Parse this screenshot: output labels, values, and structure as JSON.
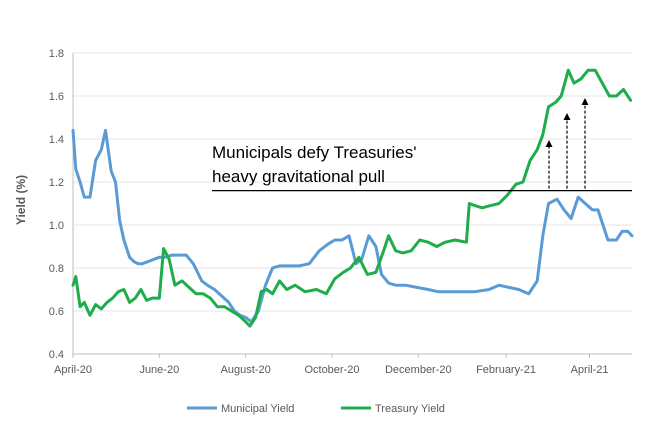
{
  "chart_data": {
    "type": "line",
    "title": "",
    "xlabel": "",
    "ylabel": "Yield (%)",
    "ylim": [
      0.4,
      1.8
    ],
    "yticks": [
      "0.4",
      "0.6",
      "0.8",
      "1.0",
      "1.2",
      "1.4",
      "1.6",
      "1.8"
    ],
    "xticks": [
      "April-20",
      "June-20",
      "August-20",
      "October-20",
      "December-20",
      "February-21",
      "April-21"
    ],
    "grid": true,
    "legend": "bottom",
    "annotation": [
      "Municipals defy Treasuries'",
      "heavy gravitational pull"
    ],
    "reference_line": 1.16,
    "colors": {
      "Municipal Yield": "#5b9bd5",
      "Treasury Yield": "#1fad4b"
    },
    "series": [
      {
        "name": "Municipal Yield",
        "x": [
          "2020-04-01",
          "2020-04-03",
          "2020-04-06",
          "2020-04-09",
          "2020-04-13",
          "2020-04-17",
          "2020-04-21",
          "2020-04-24",
          "2020-04-28",
          "2020-05-01",
          "2020-05-04",
          "2020-05-07",
          "2020-05-11",
          "2020-05-14",
          "2020-05-17",
          "2020-05-20",
          "2020-05-24",
          "2020-05-28",
          "2020-06-01",
          "2020-06-05",
          "2020-06-10",
          "2020-06-15",
          "2020-06-20",
          "2020-06-25",
          "2020-07-01",
          "2020-07-05",
          "2020-07-10",
          "2020-07-15",
          "2020-07-20",
          "2020-07-24",
          "2020-07-28",
          "2020-08-01",
          "2020-08-05",
          "2020-08-10",
          "2020-08-15",
          "2020-08-20",
          "2020-08-25",
          "2020-09-01",
          "2020-09-08",
          "2020-09-15",
          "2020-09-22",
          "2020-09-28",
          "2020-10-03",
          "2020-10-08",
          "2020-10-13",
          "2020-10-18",
          "2020-10-22",
          "2020-10-27",
          "2020-11-01",
          "2020-11-05",
          "2020-11-10",
          "2020-11-15",
          "2020-11-22",
          "2020-11-30",
          "2020-12-08",
          "2020-12-15",
          "2020-12-22",
          "2021-01-01",
          "2021-01-10",
          "2021-01-20",
          "2021-01-27",
          "2021-02-03",
          "2021-02-10",
          "2021-02-17",
          "2021-02-23",
          "2021-02-27",
          "2021-03-03",
          "2021-03-09",
          "2021-03-14",
          "2021-03-19",
          "2021-03-24",
          "2021-03-29",
          "2021-04-03",
          "2021-04-07",
          "2021-04-14",
          "2021-04-20",
          "2021-04-24",
          "2021-04-28",
          "2021-05-01"
        ],
        "y": [
          1.44,
          1.26,
          1.2,
          1.13,
          1.13,
          1.3,
          1.35,
          1.44,
          1.25,
          1.2,
          1.02,
          0.93,
          0.85,
          0.83,
          0.82,
          0.82,
          0.83,
          0.84,
          0.85,
          0.85,
          0.86,
          0.86,
          0.86,
          0.82,
          0.74,
          0.72,
          0.7,
          0.67,
          0.64,
          0.6,
          0.58,
          0.57,
          0.55,
          0.6,
          0.72,
          0.8,
          0.81,
          0.81,
          0.81,
          0.82,
          0.88,
          0.91,
          0.93,
          0.93,
          0.95,
          0.82,
          0.84,
          0.95,
          0.9,
          0.77,
          0.73,
          0.72,
          0.72,
          0.71,
          0.7,
          0.69,
          0.69,
          0.69,
          0.69,
          0.7,
          0.72,
          0.71,
          0.7,
          0.68,
          0.74,
          0.95,
          1.1,
          1.12,
          1.07,
          1.03,
          1.13,
          1.1,
          1.07,
          1.07,
          0.93,
          0.93,
          0.97,
          0.97,
          0.95
        ]
      },
      {
        "name": "Treasury Yield",
        "x": [
          "2020-04-01",
          "2020-04-03",
          "2020-04-06",
          "2020-04-09",
          "2020-04-13",
          "2020-04-17",
          "2020-04-21",
          "2020-04-25",
          "2020-04-29",
          "2020-05-03",
          "2020-05-07",
          "2020-05-11",
          "2020-05-15",
          "2020-05-19",
          "2020-05-23",
          "2020-05-27",
          "2020-06-01",
          "2020-06-04",
          "2020-06-08",
          "2020-06-12",
          "2020-06-17",
          "2020-06-22",
          "2020-06-27",
          "2020-07-02",
          "2020-07-07",
          "2020-07-12",
          "2020-07-17",
          "2020-07-22",
          "2020-07-27",
          "2020-08-01",
          "2020-08-04",
          "2020-08-08",
          "2020-08-12",
          "2020-08-16",
          "2020-08-20",
          "2020-08-25",
          "2020-08-30",
          "2020-09-05",
          "2020-09-12",
          "2020-09-20",
          "2020-09-27",
          "2020-10-03",
          "2020-10-09",
          "2020-10-14",
          "2020-10-20",
          "2020-10-26",
          "2020-11-01",
          "2020-11-06",
          "2020-11-10",
          "2020-11-15",
          "2020-11-20",
          "2020-11-26",
          "2020-12-02",
          "2020-12-08",
          "2020-12-14",
          "2020-12-20",
          "2020-12-27",
          "2021-01-04",
          "2021-01-06",
          "2021-01-10",
          "2021-01-15",
          "2021-01-21",
          "2021-01-27",
          "2021-02-02",
          "2021-02-08",
          "2021-02-13",
          "2021-02-18",
          "2021-02-23",
          "2021-02-27",
          "2021-03-03",
          "2021-03-08",
          "2021-03-12",
          "2021-03-17",
          "2021-03-21",
          "2021-03-26",
          "2021-03-31",
          "2021-04-05",
          "2021-04-10",
          "2021-04-15",
          "2021-04-20",
          "2021-04-25",
          "2021-04-30"
        ],
        "y": [
          0.72,
          0.76,
          0.62,
          0.64,
          0.58,
          0.63,
          0.61,
          0.64,
          0.66,
          0.69,
          0.7,
          0.64,
          0.66,
          0.7,
          0.65,
          0.66,
          0.66,
          0.89,
          0.84,
          0.72,
          0.74,
          0.71,
          0.68,
          0.68,
          0.66,
          0.62,
          0.62,
          0.6,
          0.58,
          0.55,
          0.53,
          0.57,
          0.69,
          0.7,
          0.68,
          0.74,
          0.7,
          0.72,
          0.69,
          0.7,
          0.68,
          0.75,
          0.78,
          0.8,
          0.85,
          0.77,
          0.78,
          0.87,
          0.95,
          0.88,
          0.87,
          0.88,
          0.93,
          0.92,
          0.9,
          0.92,
          0.93,
          0.92,
          1.1,
          1.09,
          1.08,
          1.09,
          1.1,
          1.14,
          1.19,
          1.2,
          1.3,
          1.35,
          1.42,
          1.55,
          1.57,
          1.6,
          1.72,
          1.66,
          1.68,
          1.72,
          1.72,
          1.66,
          1.6,
          1.6,
          1.63,
          1.58
        ]
      }
    ]
  }
}
